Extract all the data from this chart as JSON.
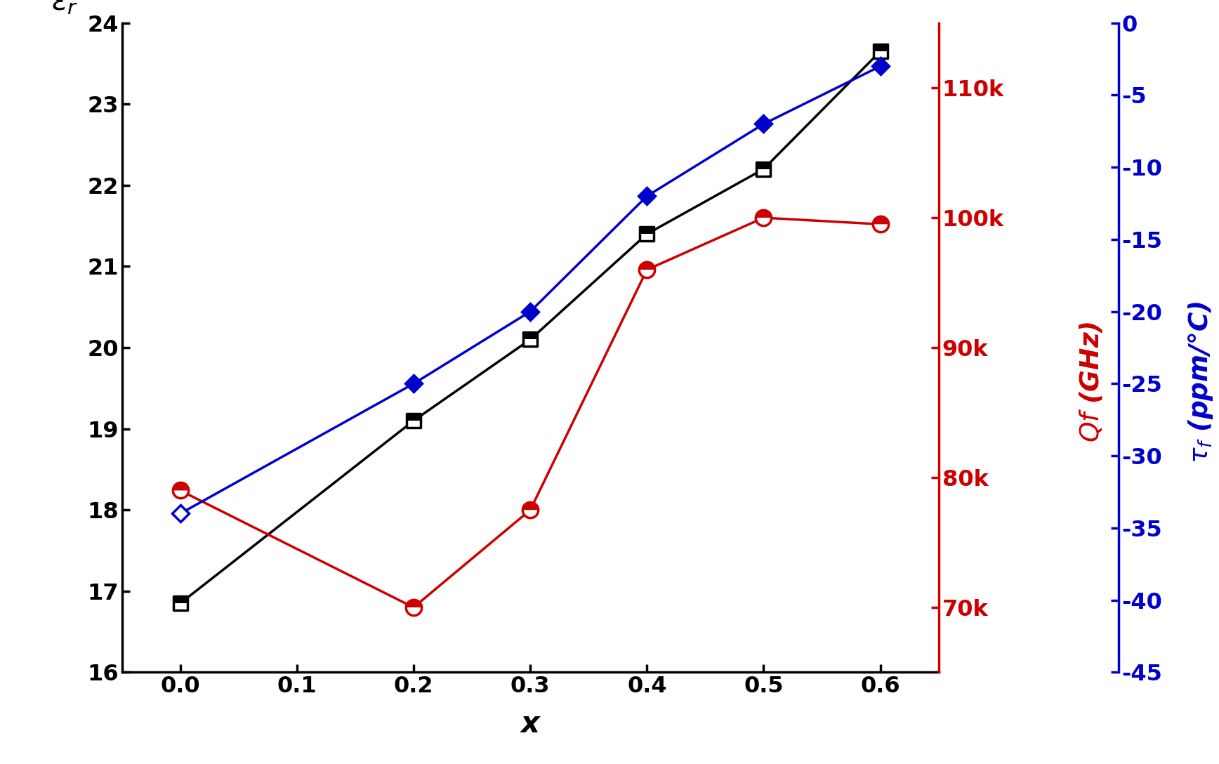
{
  "x": [
    0.0,
    0.2,
    0.3,
    0.4,
    0.5,
    0.6
  ],
  "er": [
    16.85,
    19.1,
    20.1,
    21.4,
    22.2,
    23.65
  ],
  "qf": [
    79000,
    70000,
    77500,
    96000,
    100000,
    99500
  ],
  "tf": [
    -34,
    -25,
    -20,
    -12,
    -7,
    -3
  ],
  "er_ylim": [
    16,
    24
  ],
  "er_yticks": [
    16,
    17,
    18,
    19,
    20,
    21,
    22,
    23,
    24
  ],
  "qf_ylim": [
    65000,
    115000
  ],
  "qf_yticks": [
    70000,
    80000,
    90000,
    100000,
    110000
  ],
  "qf_yticklabels": [
    "70k",
    "80k",
    "90k",
    "100k",
    "110k"
  ],
  "tf_ylim": [
    -45,
    0
  ],
  "tf_yticks": [
    0,
    -5,
    -10,
    -15,
    -20,
    -25,
    -30,
    -35,
    -40,
    -45
  ],
  "xlim": [
    -0.05,
    0.65
  ],
  "xticks": [
    0.0,
    0.1,
    0.2,
    0.3,
    0.4,
    0.5,
    0.6
  ],
  "black_color": "#000000",
  "red_color": "#cc0000",
  "blue_color": "#0000cc",
  "xlabel": "x",
  "lw": 2.5,
  "tick_labelsize": 23,
  "axis_labelsize": 30,
  "marker_size": 14
}
